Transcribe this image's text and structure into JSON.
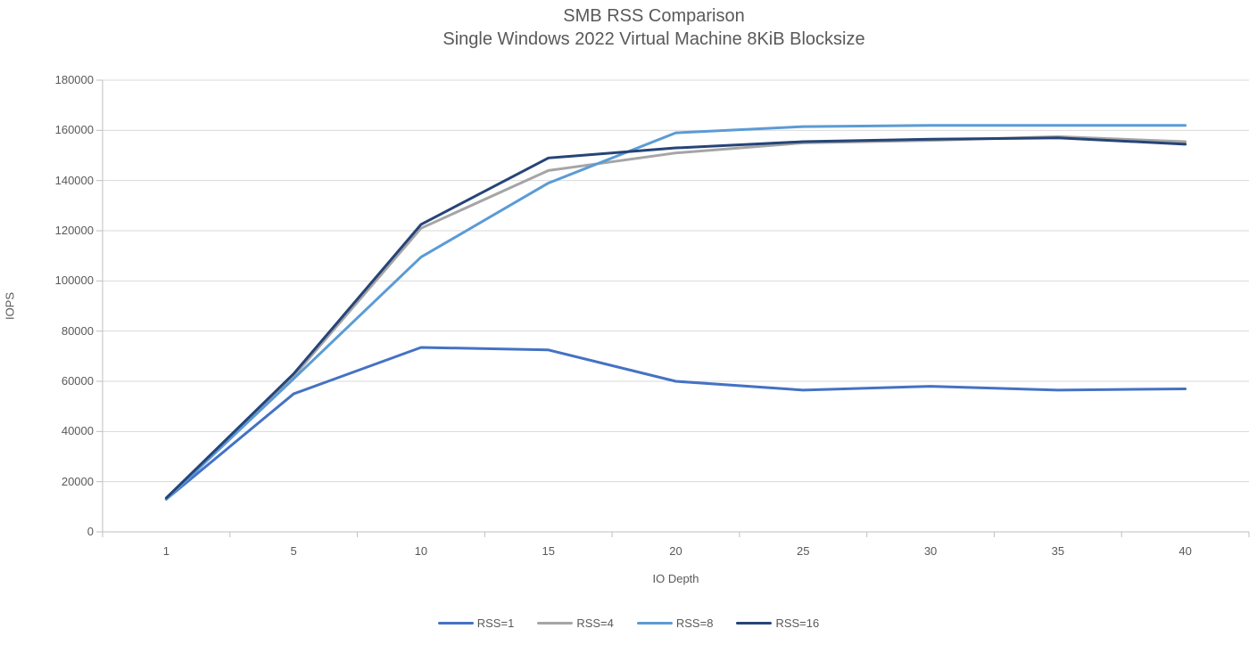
{
  "chart_data": {
    "type": "line",
    "title": "SMB RSS Comparison",
    "subtitle": "Single Windows 2022 Virtual Machine 8KiB Blocksize",
    "xlabel": "IO Depth",
    "ylabel": "IOPS",
    "categories": [
      1,
      5,
      10,
      15,
      20,
      25,
      30,
      35,
      40
    ],
    "ylim": [
      0,
      180000
    ],
    "yticks": [
      0,
      20000,
      40000,
      60000,
      80000,
      100000,
      120000,
      140000,
      160000,
      180000
    ],
    "grid": true,
    "legend_position": "bottom",
    "series": [
      {
        "name": "RSS=1",
        "color": "#4472C4",
        "values": [
          13000,
          55000,
          73500,
          72500,
          60000,
          56500,
          58000,
          56500,
          57000
        ]
      },
      {
        "name": "RSS=4",
        "color": "#A5A5A5",
        "values": [
          13000,
          62000,
          121000,
          144000,
          151000,
          155000,
          156000,
          157500,
          155500
        ]
      },
      {
        "name": "RSS=8",
        "color": "#5B9BD5",
        "values": [
          13000,
          61000,
          109500,
          139000,
          159000,
          161500,
          162000,
          162000,
          162000
        ]
      },
      {
        "name": "RSS=16",
        "color": "#264478",
        "values": [
          13500,
          63000,
          122500,
          149000,
          153000,
          155500,
          156500,
          157000,
          154500
        ]
      }
    ],
    "styles": {
      "text_color": "#595959",
      "gridline_color": "#D9D9D9",
      "axis_line_color": "#BFBFBF",
      "background": "#FFFFFF"
    }
  }
}
